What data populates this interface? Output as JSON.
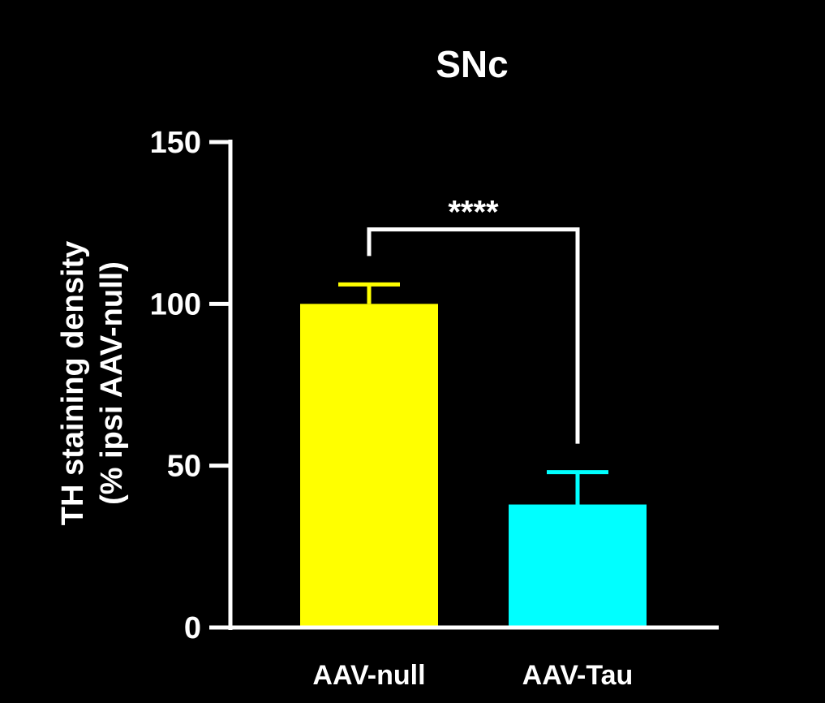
{
  "chart_data": {
    "type": "bar",
    "title": "SNc",
    "ylabel_line1": "TH staining density",
    "ylabel_line2": "(% ipsi AAV-null)",
    "xlabel": "",
    "ylim": [
      0,
      150
    ],
    "yticks": [
      "0",
      "50",
      "100",
      "150"
    ],
    "categories": [
      "AAV-null",
      "AAV-Tau"
    ],
    "values": [
      100,
      38
    ],
    "errors": [
      6,
      10
    ],
    "colors": [
      "#ffff00",
      "#00ffff"
    ],
    "background": "#000000",
    "axis_color": "#ffffff",
    "significance": {
      "label": "****",
      "between": [
        0,
        1
      ],
      "level": 123
    }
  }
}
